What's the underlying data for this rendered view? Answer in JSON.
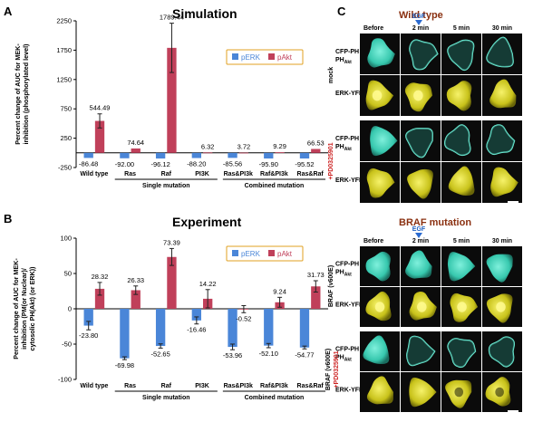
{
  "panels": {
    "A": "A",
    "B": "B",
    "C": "C"
  },
  "chart_data": [
    {
      "type": "bar",
      "title": "Simulation",
      "ylabel_lines": [
        "Percent change of AUC for MEK-",
        "inhibition (phosphorylated level)"
      ],
      "ylim": [
        -250,
        2250
      ],
      "yticks": [
        -250,
        250,
        750,
        1250,
        1750,
        2250
      ],
      "tick_labels": [
        "-250",
        "250",
        "750",
        "1250",
        "1750",
        "2250"
      ],
      "categories": [
        "Wild type",
        "Ras",
        "Raf",
        "PI3K",
        "Ras&PI3k",
        "Raf&PI3k",
        "Ras&Raf"
      ],
      "series": [
        {
          "name": "pERK",
          "color": "#4a86d8",
          "values": [
            -86.48,
            -92.0,
            -96.12,
            -88.2,
            -85.56,
            -95.9,
            -95.52
          ],
          "labels": [
            "-86.48",
            "-92.00",
            "-96.12",
            "-88.20",
            "-85.56",
            "-95.90",
            "-95.52"
          ]
        },
        {
          "name": "pAkt",
          "color": "#c0405a",
          "values": [
            544.49,
            74.64,
            1789.44,
            6.32,
            3.72,
            9.29,
            66.53
          ],
          "errors": [
            120,
            0,
            420,
            0,
            0,
            0,
            0
          ],
          "labels": [
            "544.49",
            "74.64",
            "1789.44",
            "6.32",
            "3.72",
            "9.29",
            "66.53"
          ]
        }
      ],
      "groups": [
        {
          "label": "Single mutation",
          "from": 1,
          "to": 3
        },
        {
          "label": "Combined mutation",
          "from": 4,
          "to": 6
        }
      ],
      "legend_position": "top-right"
    },
    {
      "type": "bar",
      "title": "Experiment",
      "ylabel_lines": [
        "Percent change of AUC for MEK-",
        "inhibition (PM(or Nuclear)/",
        "cytosolic PH(Akt) (or ERK))"
      ],
      "ylim": [
        -100,
        100
      ],
      "yticks": [
        -100,
        -50,
        0,
        50,
        100
      ],
      "tick_labels": [
        "-100",
        "-50",
        "0",
        "50",
        "100"
      ],
      "categories": [
        "Wild type",
        "Ras",
        "Raf",
        "PI3K",
        "Ras&PI3k",
        "Raf&PI3k",
        "Ras&Raf"
      ],
      "series": [
        {
          "name": "pERK",
          "color": "#4a86d8",
          "values": [
            -23.8,
            -69.98,
            -52.65,
            -16.46,
            -53.96,
            -52.1,
            -54.77
          ],
          "errors": [
            6,
            2,
            3,
            5,
            4,
            3,
            2
          ],
          "labels": [
            "-23.80",
            "-69.98",
            "-52.65",
            "-16.46",
            "-53.96",
            "-52.10",
            "-54.77"
          ]
        },
        {
          "name": "pAkt",
          "color": "#c0405a",
          "values": [
            28.32,
            26.33,
            73.39,
            14.22,
            -0.52,
            9.24,
            31.73
          ],
          "errors": [
            9,
            6,
            12,
            13,
            5,
            7,
            8
          ],
          "labels": [
            "28.32",
            "26.33",
            "73.39",
            "14.22",
            "-0.52",
            "9.24",
            "31.73"
          ]
        }
      ],
      "groups": [
        {
          "label": "Single mutation",
          "from": 1,
          "to": 3
        },
        {
          "label": "Combined mutation",
          "from": 4,
          "to": 6
        }
      ],
      "legend_position": "top-right"
    }
  ],
  "micrographs": {
    "wild_type_title": "Wild type",
    "braf_title": "BRAF mutation",
    "egf_label": "EGF",
    "timepoints": [
      "Before",
      "2 min",
      "5 min",
      "30 min"
    ],
    "rows": [
      "CFP-PH",
      "ERK-YFP",
      "CFP-PH",
      "ERK-YFP"
    ],
    "row_subscript": "Akt",
    "wt_conditions": {
      "mock": "mock",
      "drug": "+PD0325901"
    },
    "braf_conditions": {
      "braf": "BRAF (v600E)",
      "braf_drug_a": "BRAF (v600E)",
      "braf_drug_b": "+PD0325901"
    },
    "colors": {
      "cfp": "#3fd1b8",
      "yfp": "#d8d220",
      "dark": "#101010",
      "drug": "#cc2222",
      "wt_title": "#8a3010"
    }
  }
}
